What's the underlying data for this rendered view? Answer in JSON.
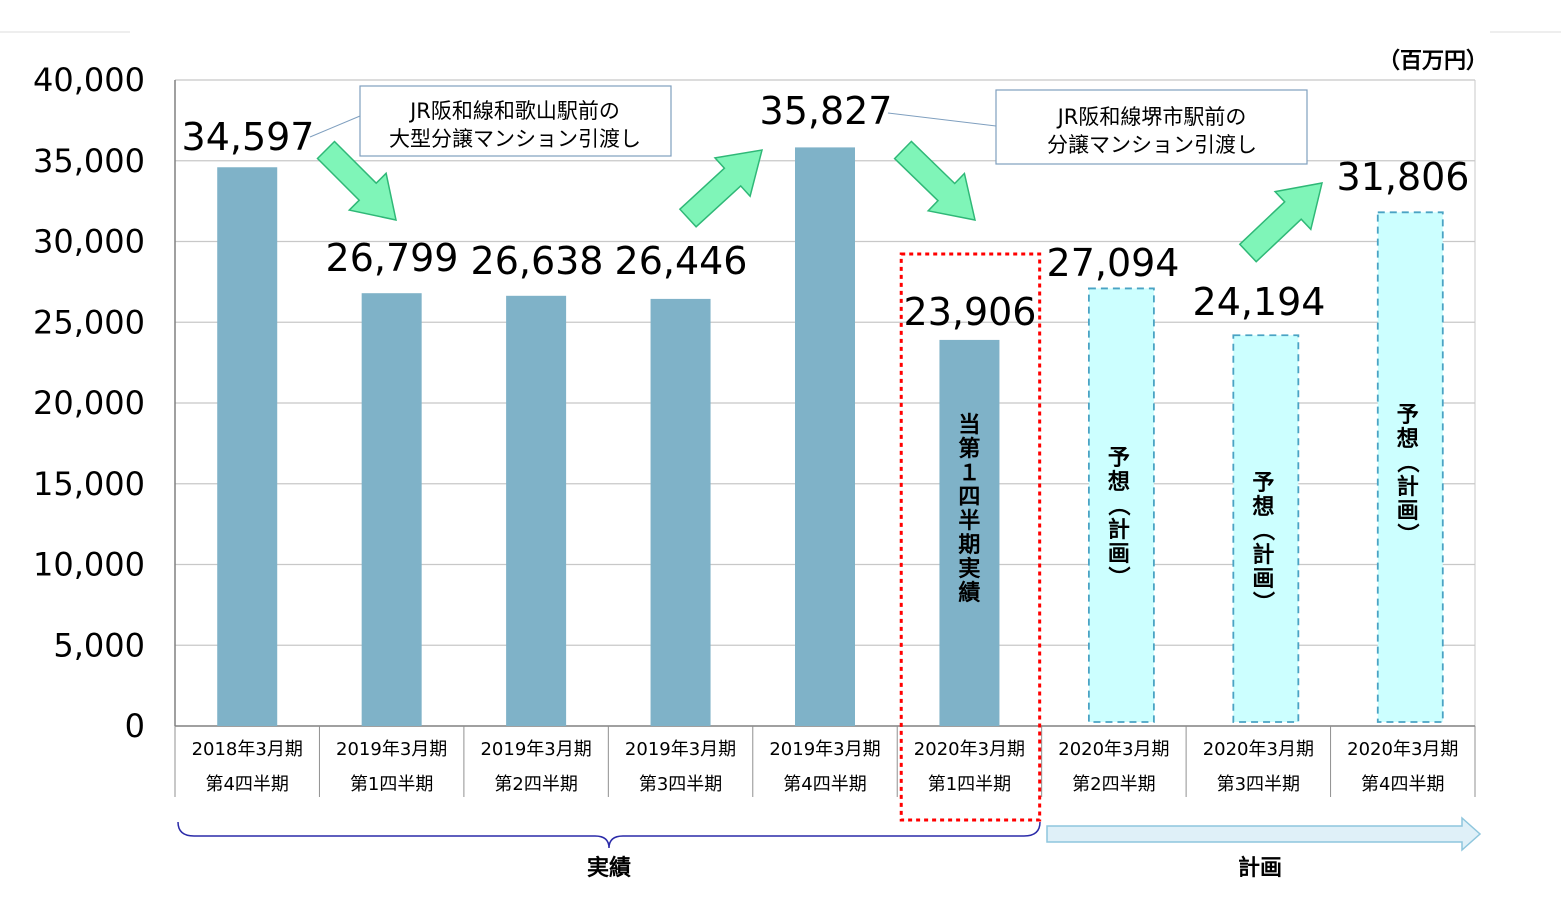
{
  "chart_data": {
    "type": "bar",
    "unit": "（百万円）",
    "ylim": [
      0,
      40000
    ],
    "y_ticks": [
      "0",
      "5,000",
      "10,000",
      "15,000",
      "20,000",
      "25,000",
      "30,000",
      "35,000",
      "40,000"
    ],
    "grid": true,
    "categories": [
      {
        "line1": "2018年3月期",
        "line2": "第4四半期"
      },
      {
        "line1": "2019年3月期",
        "line2": "第1四半期"
      },
      {
        "line1": "2019年3月期",
        "line2": "第2四半期"
      },
      {
        "line1": "2019年3月期",
        "line2": "第3四半期"
      },
      {
        "line1": "2019年3月期",
        "line2": "第4四半期"
      },
      {
        "line1": "2020年3月期",
        "line2": "第1四半期"
      },
      {
        "line1": "2020年3月期",
        "line2": "第2四半期"
      },
      {
        "line1": "2020年3月期",
        "line2": "第3四半期"
      },
      {
        "line1": "2020年3月期",
        "line2": "第4四半期"
      }
    ],
    "values": [
      34597,
      26799,
      26638,
      26446,
      35827,
      23906,
      27094,
      24194,
      31806
    ],
    "value_labels": [
      "34,597",
      "26,799",
      "26,638",
      "26,446",
      "35,827",
      "23,906",
      "27,094",
      "24,194",
      "31,806"
    ],
    "bar_kind": [
      "actual",
      "actual",
      "actual",
      "actual",
      "actual",
      "actual",
      "forecast",
      "forecast",
      "forecast"
    ],
    "bar_text": [
      "",
      "",
      "",
      "",
      "",
      "当第１四半期実績",
      "予想（計画）",
      "予想（計画）",
      "予想（計画）"
    ],
    "annotations": [
      {
        "lines": [
          "JR阪和線和歌山駅前の",
          "大型分譲マンション引渡し"
        ]
      },
      {
        "lines": [
          "JR阪和線堺市駅前の",
          "分譲マンション引渡し"
        ]
      }
    ],
    "brackets": {
      "actual": "実績",
      "plan": "計画"
    },
    "colors": {
      "actual_bar": "#7fb2c8",
      "forecast_fill": "#ccffff",
      "forecast_border": "#4aa3c4",
      "highlight_border": "#ff0000",
      "arrow_fill": "#7ff5b8",
      "arrow_stroke": "#2fb877",
      "bracket_line": "#2a2aa8",
      "plan_arrow_fill": "#dff0f8",
      "plan_arrow_stroke": "#8ec6dd",
      "grid": "#c8c8c8",
      "note_border": "#7f9fbf"
    }
  }
}
